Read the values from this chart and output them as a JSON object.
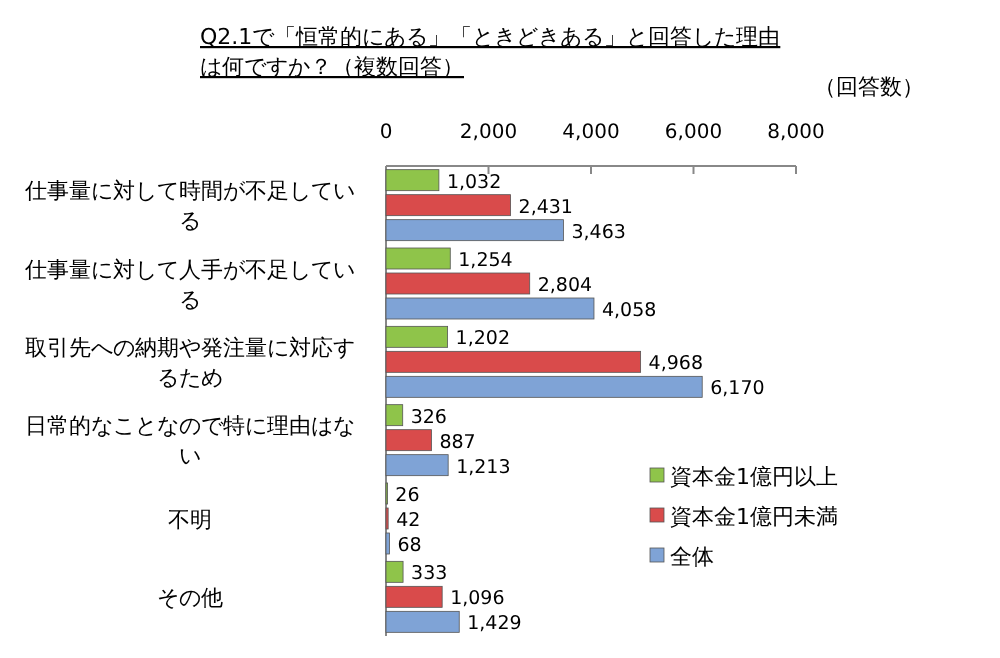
{
  "chart_data": {
    "type": "bar",
    "orientation": "horizontal",
    "title": "Q2.1で「恒常的にある」「ときどきある」と回答した理由は何ですか？（複数回答）",
    "xlabel": "（回答数）",
    "categories": [
      "仕事量に対して時間が不足している",
      "仕事量に対して人手が不足している",
      "取引先への納期や発注量に対応するため",
      "日常的なことなので特に理由はない",
      "不明",
      "その他"
    ],
    "series": [
      {
        "name": "資本金1億円以上",
        "color": "#8fc44a",
        "values": [
          1032,
          1254,
          1202,
          326,
          26,
          333
        ],
        "value_labels": [
          "1,032",
          "1,254",
          "1,202",
          "326",
          "26",
          "333"
        ]
      },
      {
        "name": "資本金1億円未満",
        "color": "#d94b4b",
        "values": [
          2431,
          2804,
          4968,
          887,
          42,
          1096
        ],
        "value_labels": [
          "2,431",
          "2,804",
          "4,968",
          "887",
          "42",
          "1,096"
        ]
      },
      {
        "name": "全体",
        "color": "#7fa3d6",
        "values": [
          3463,
          4058,
          6170,
          1213,
          68,
          1429
        ],
        "value_labels": [
          "3,463",
          "4,058",
          "6,170",
          "1,213",
          "68",
          "1,429"
        ]
      }
    ],
    "xlim": [
      0,
      8000
    ],
    "xticks": [
      {
        "value": 0,
        "label": "0"
      },
      {
        "value": 2000,
        "label": "2,000"
      },
      {
        "value": 4000,
        "label": "4,000"
      },
      {
        "value": 6000,
        "label": "6,000"
      },
      {
        "value": 8000,
        "label": "8,000"
      }
    ],
    "grid": false,
    "legend": "bottom right"
  }
}
